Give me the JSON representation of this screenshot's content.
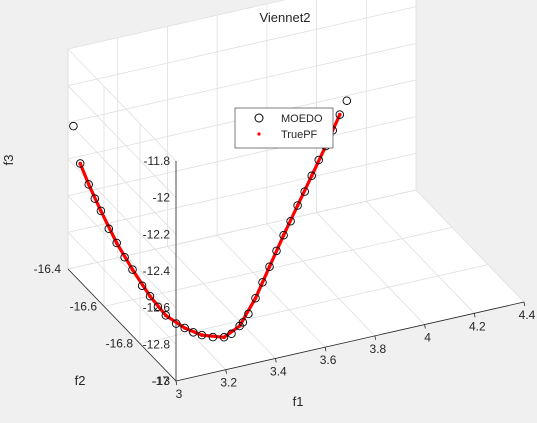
{
  "chart_data": {
    "type": "scatter",
    "title": "Viennet2",
    "xlabel": "f1",
    "ylabel": "f2",
    "zlabel": "f3",
    "view": "3d",
    "grid": true,
    "legend_position": "top-right (inside)",
    "xlim": [
      3,
      4.4
    ],
    "ylim": [
      -17,
      -16.4
    ],
    "zlim": [
      -13,
      -11.8
    ],
    "xticks": [
      "3",
      "3.2",
      "3.4",
      "3.6",
      "3.8",
      "4",
      "4.2",
      "4.4"
    ],
    "yticks": [
      "-16.4",
      "-16.6",
      "-16.8",
      "-17"
    ],
    "zticks": [
      "-11.8",
      "-12",
      "-12.2",
      "-12.4",
      "-12.6",
      "-12.8",
      "-13"
    ],
    "series": [
      {
        "name": "MOEDO",
        "marker": "open-circle",
        "color": "#000000",
        "points": [
          [
            3.0,
            -16.43,
            -12.19
          ],
          [
            3.02,
            -16.44,
            -12.39
          ],
          [
            3.04,
            -16.46,
            -12.49
          ],
          [
            3.05,
            -16.48,
            -12.55
          ],
          [
            3.06,
            -16.5,
            -12.6
          ],
          [
            3.07,
            -16.53,
            -12.67
          ],
          [
            3.08,
            -16.56,
            -12.72
          ],
          [
            3.09,
            -16.59,
            -12.77
          ],
          [
            3.1,
            -16.62,
            -12.81
          ],
          [
            3.11,
            -16.66,
            -12.86
          ],
          [
            3.12,
            -16.69,
            -12.89
          ],
          [
            3.13,
            -16.72,
            -12.92
          ],
          [
            3.14,
            -16.75,
            -12.94
          ],
          [
            3.16,
            -16.78,
            -12.96
          ],
          [
            3.18,
            -16.8,
            -12.97
          ],
          [
            3.2,
            -16.82,
            -12.98
          ],
          [
            3.22,
            -16.84,
            -12.98
          ],
          [
            3.25,
            -16.86,
            -12.98
          ],
          [
            3.28,
            -16.88,
            -12.97
          ],
          [
            3.31,
            -16.88,
            -12.96
          ],
          [
            3.35,
            -16.87,
            -12.94
          ],
          [
            3.4,
            -16.85,
            -12.91
          ],
          [
            3.45,
            -16.82,
            -12.87
          ],
          [
            3.5,
            -16.79,
            -12.83
          ],
          [
            3.55,
            -16.76,
            -12.79
          ],
          [
            3.6,
            -16.73,
            -12.75
          ],
          [
            3.65,
            -16.7,
            -12.71
          ],
          [
            3.7,
            -16.67,
            -12.68
          ],
          [
            3.75,
            -16.64,
            -12.64
          ],
          [
            3.8,
            -16.61,
            -12.61
          ],
          [
            3.85,
            -16.58,
            -12.57
          ],
          [
            3.9,
            -16.55,
            -12.53
          ],
          [
            3.95,
            -16.52,
            -12.5
          ],
          [
            4.0,
            -16.49,
            -12.46
          ],
          [
            4.05,
            -16.46,
            -12.42
          ],
          [
            4.1,
            -16.43,
            -12.39
          ],
          [
            3.32,
            -16.93,
            -12.85
          ]
        ]
      },
      {
        "name": "TruePF",
        "marker": "dot",
        "color": "#ff0000",
        "points": [
          [
            3.02,
            -16.44,
            -12.39
          ],
          [
            3.04,
            -16.46,
            -12.49
          ],
          [
            3.06,
            -16.5,
            -12.6
          ],
          [
            3.08,
            -16.56,
            -12.72
          ],
          [
            3.1,
            -16.62,
            -12.81
          ],
          [
            3.12,
            -16.69,
            -12.89
          ],
          [
            3.14,
            -16.75,
            -12.94
          ],
          [
            3.18,
            -16.8,
            -12.97
          ],
          [
            3.22,
            -16.84,
            -12.98
          ],
          [
            3.28,
            -16.88,
            -12.97
          ],
          [
            3.35,
            -16.87,
            -12.94
          ],
          [
            3.45,
            -16.82,
            -12.87
          ],
          [
            3.55,
            -16.76,
            -12.79
          ],
          [
            3.65,
            -16.7,
            -12.71
          ],
          [
            3.75,
            -16.64,
            -12.64
          ],
          [
            3.85,
            -16.58,
            -12.57
          ],
          [
            3.95,
            -16.52,
            -12.5
          ],
          [
            4.05,
            -16.46,
            -12.42
          ]
        ]
      }
    ]
  }
}
